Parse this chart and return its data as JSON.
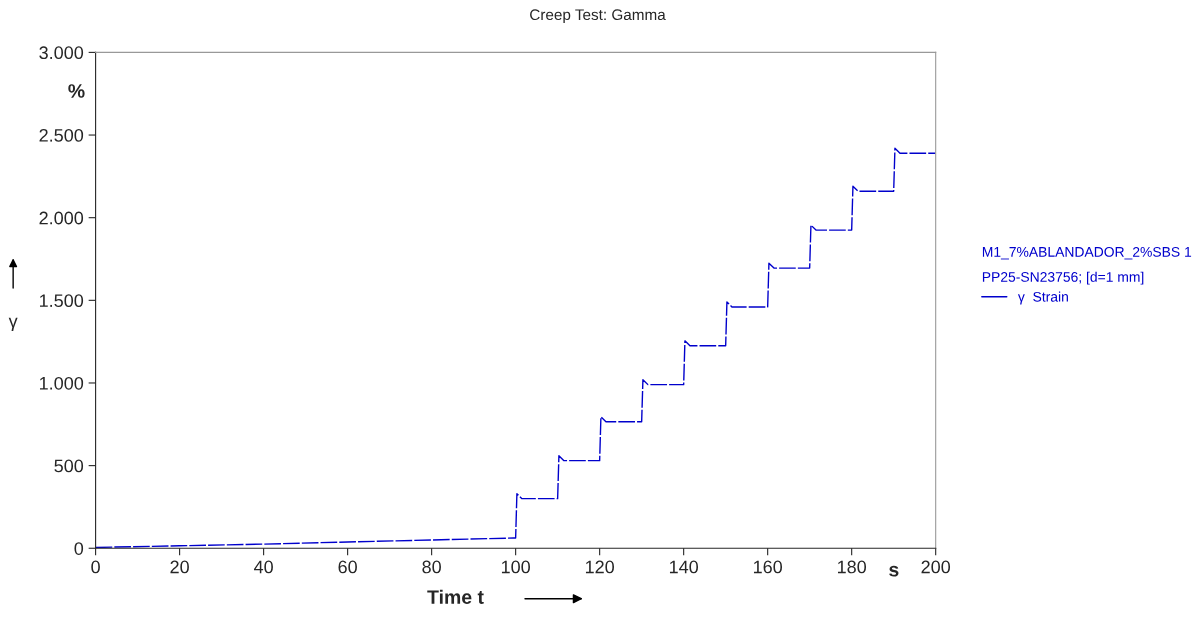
{
  "chart_data": {
    "type": "line",
    "title": "Creep Test: Gamma",
    "xlabel": "Time t",
    "ylabel": "γ",
    "annotations": [
      "%",
      "s"
    ],
    "legend_title": "M1_7%ABLANDADOR_2%SBS 1\nPP25-SN23756; [d=1 mm]",
    "series": [
      {
        "name": "γ  Strain",
        "color": "#0000cc",
        "x": [
          0,
          20,
          40,
          60,
          80,
          99.5,
          100,
          100.3,
          101.5,
          110,
          110.3,
          111.5,
          120,
          120.3,
          121.5,
          130,
          130.3,
          131.5,
          140,
          140.3,
          141.5,
          150,
          150.3,
          151.5,
          160,
          160.3,
          161.5,
          170,
          170.3,
          171.5,
          180,
          180.3,
          181.5,
          190,
          190.3,
          191.5,
          200
        ],
        "values": [
          5,
          15,
          25,
          38,
          50,
          62,
          62,
          330,
          300,
          300,
          560,
          530,
          530,
          795,
          765,
          765,
          1020,
          990,
          990,
          1255,
          1225,
          1225,
          1490,
          1460,
          1460,
          1725,
          1695,
          1695,
          1955,
          1925,
          1925,
          2190,
          2160,
          2160,
          2420,
          2390,
          2390
        ]
      }
    ],
    "xlim": [
      0,
      200
    ],
    "xticks": [
      0,
      20,
      40,
      60,
      80,
      100,
      120,
      140,
      160,
      180,
      200
    ],
    "ylim": [
      0,
      3000
    ],
    "yticks": [
      {
        "value": 0,
        "label": "0"
      },
      {
        "value": 500,
        "label": "500"
      },
      {
        "value": 1000,
        "label": "1.000"
      },
      {
        "value": 1500,
        "label": "1.500"
      },
      {
        "value": 2000,
        "label": "2.000"
      },
      {
        "value": 2500,
        "label": "2.500"
      },
      {
        "value": 3000,
        "label": "3.000"
      }
    ],
    "line_style": "dashed",
    "grid": false,
    "legend": "right"
  }
}
